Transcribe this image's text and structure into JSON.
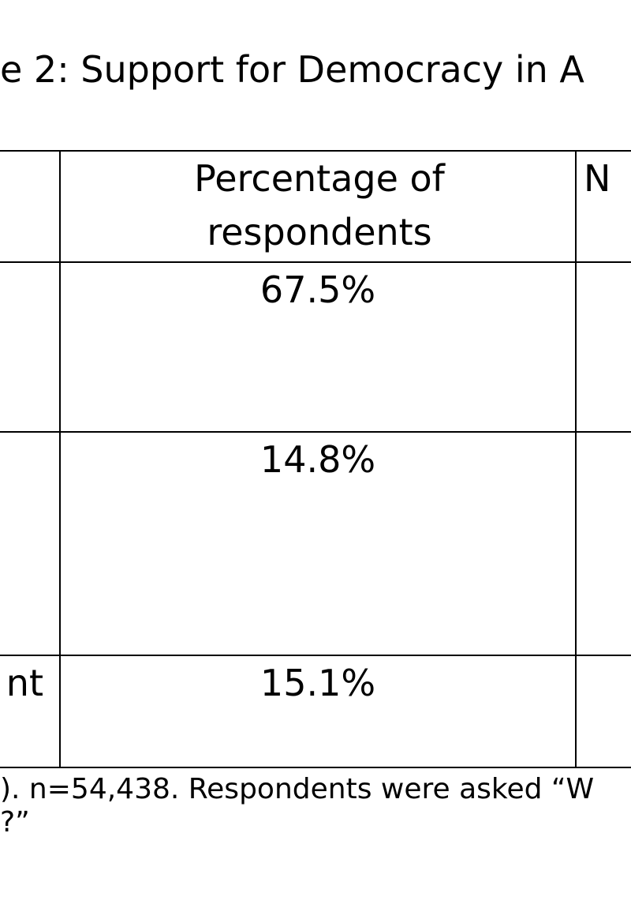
{
  "title": "e 2: Support for Democracy in A",
  "table": {
    "header": {
      "percentage": "Percentage of respondents",
      "n": "N"
    },
    "rows": [
      {
        "percentage": "67.5%"
      },
      {
        "percentage": "14.8%"
      },
      {
        "label": "nt",
        "percentage": "15.1%"
      }
    ]
  },
  "footnote": [
    "). n=54,438. Respondents were asked “W",
    "?”"
  ]
}
